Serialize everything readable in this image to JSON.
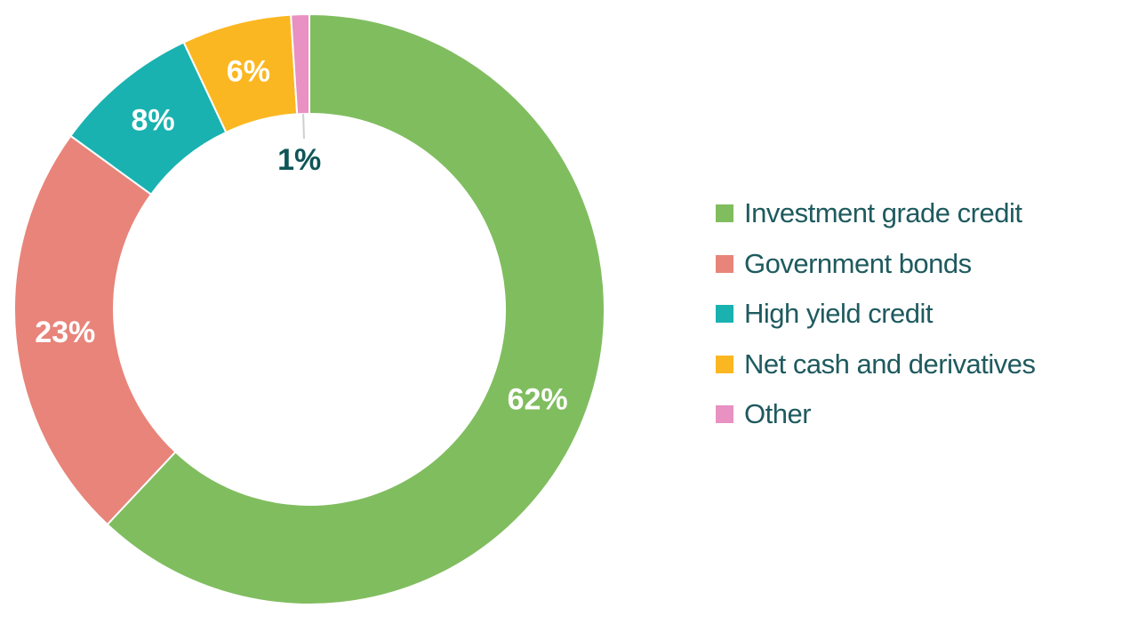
{
  "chart_data": {
    "type": "pie",
    "categories": [
      "Investment grade credit",
      "Government bonds",
      "High yield credit",
      "Net cash and derivatives",
      "Other"
    ],
    "values": [
      62,
      23,
      8,
      6,
      1
    ],
    "labels": [
      "62%",
      "23%",
      "8%",
      "6%",
      "1%"
    ],
    "colors": [
      "#80bd5f",
      "#e8847a",
      "#19b2b0",
      "#fbb722",
      "#e891c2"
    ],
    "label_colors": [
      "#ffffff",
      "#ffffff",
      "#ffffff",
      "#ffffff",
      "#0f5557"
    ],
    "title": "",
    "legend_position": "right",
    "donut": true
  }
}
